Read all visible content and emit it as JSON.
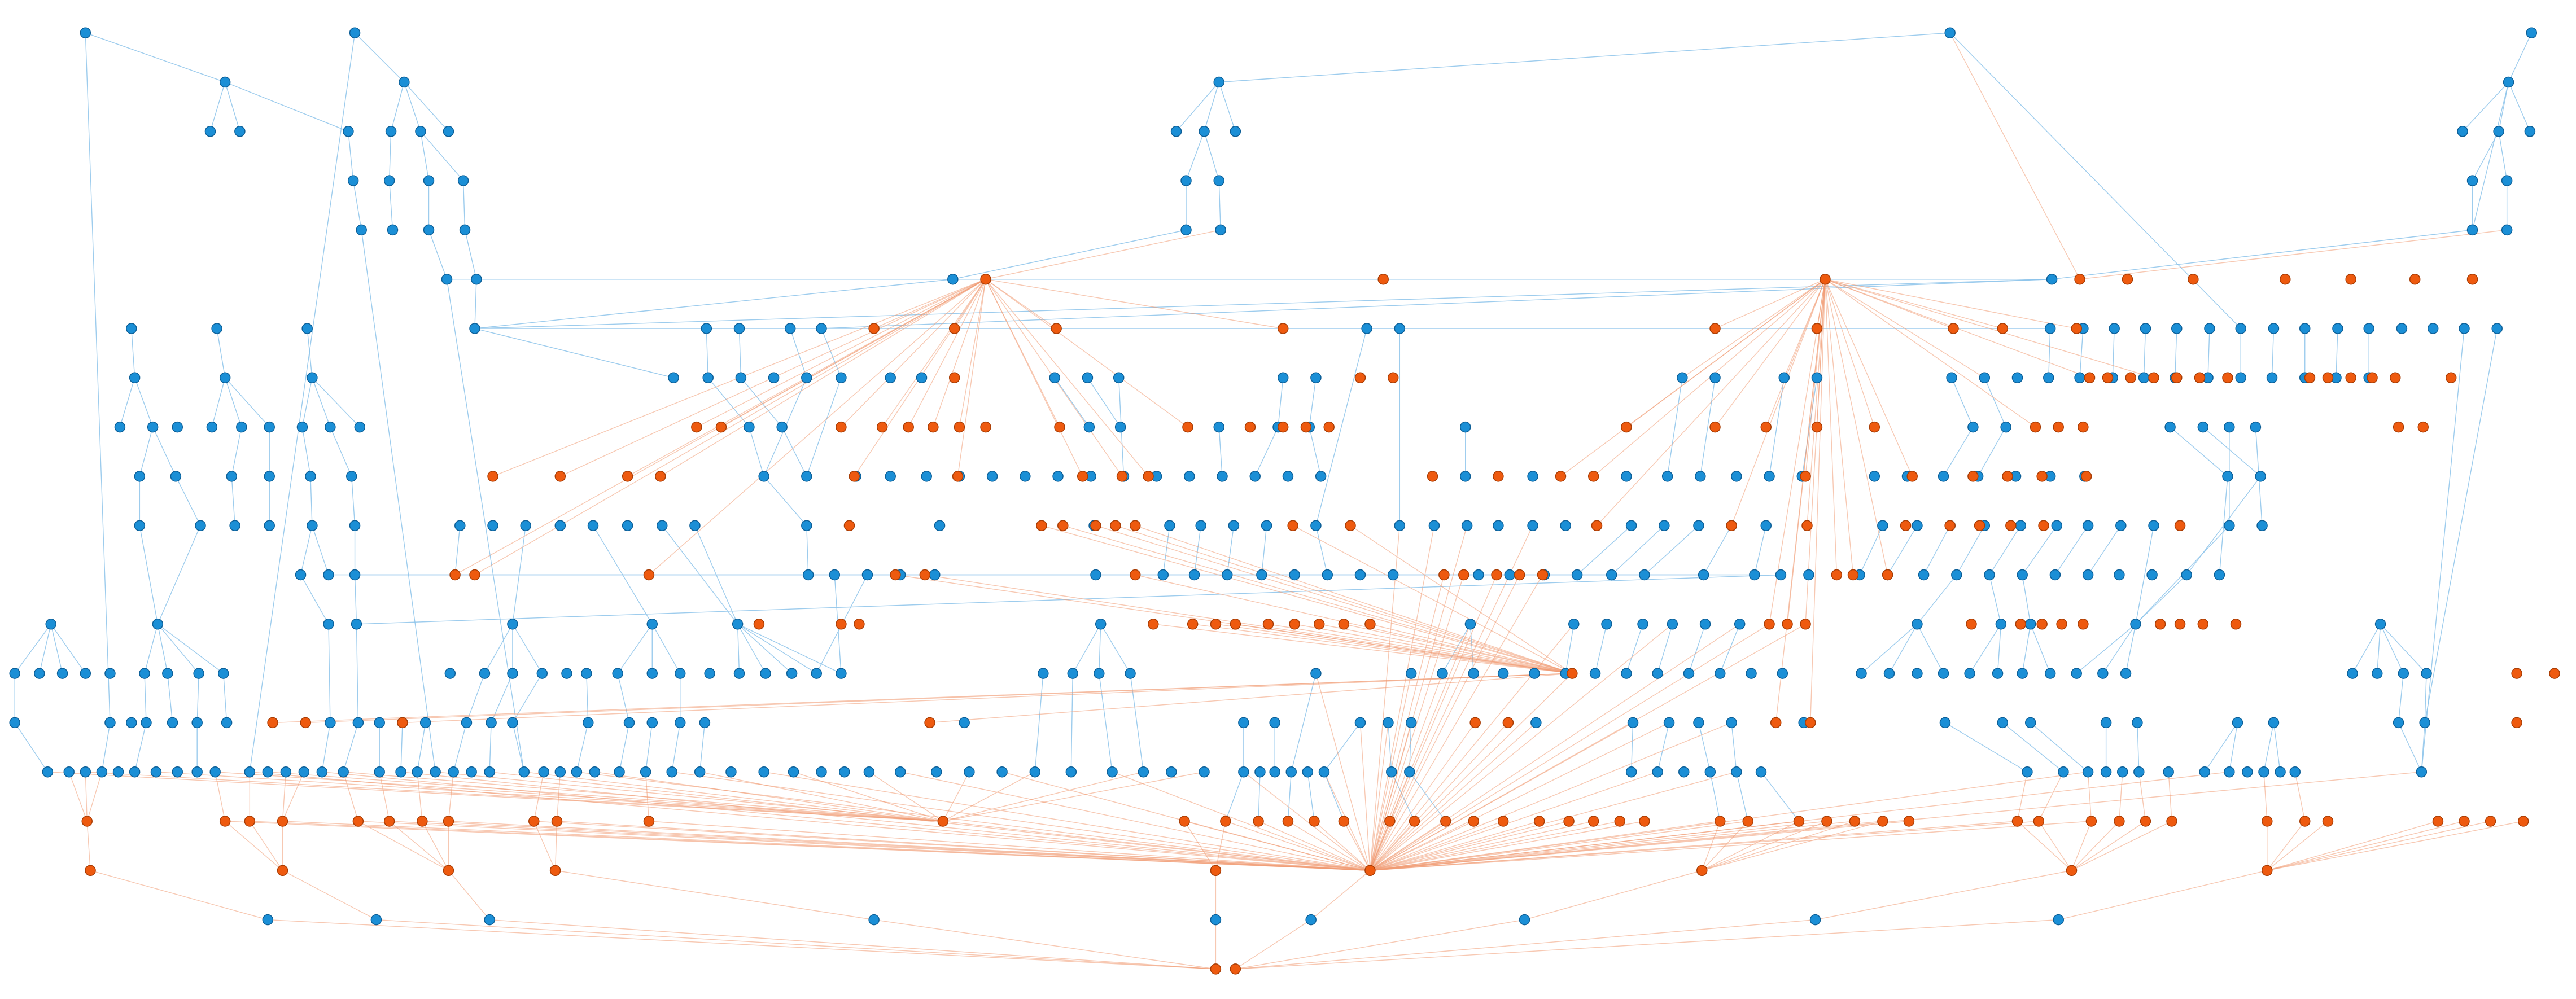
{
  "diagram": {
    "type": "layered-dependency-graph",
    "colors": {
      "blue_node": "#1b8fd6",
      "blue_node_stroke": "#0d5f97",
      "orange_node": "#ee5a0f",
      "orange_node_stroke": "#a83d05",
      "blue_edge": "#8cc3ea",
      "orange_edge": "#f19a72",
      "background": "#ffffff"
    },
    "node_kinds": [
      "blue",
      "orange"
    ],
    "labels": []
  }
}
